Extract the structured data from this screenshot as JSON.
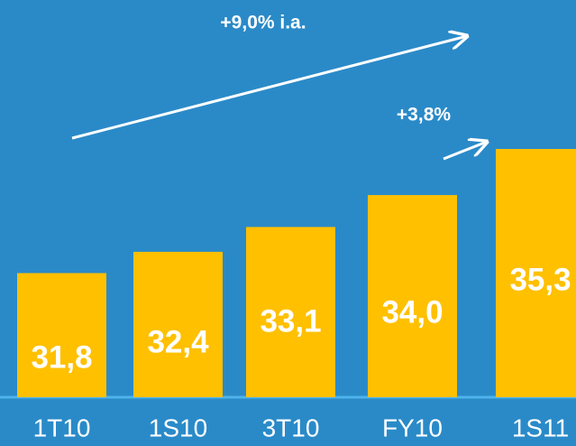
{
  "chart_data": {
    "type": "bar",
    "categories": [
      "1T10",
      "1S10",
      "3T10",
      "FY10",
      "1S11"
    ],
    "values": [
      31.8,
      32.4,
      33.1,
      34.0,
      35.3
    ],
    "value_labels": [
      "31,8",
      "32,4",
      "33,1",
      "34,0",
      "35,3"
    ],
    "color": "#ffc000",
    "ylim": [
      28.3,
      39.5
    ],
    "annotations": [
      "+9,0% i.a.",
      "+3,8%"
    ]
  }
}
